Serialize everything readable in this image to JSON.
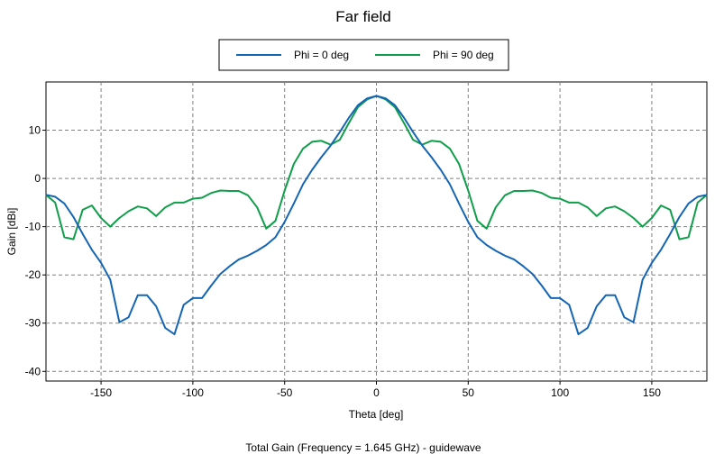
{
  "chart_data": {
    "type": "line",
    "title": "Far field",
    "xlabel": "Theta [deg]",
    "ylabel": "Gain [dBi]",
    "footer": "Total Gain (Frequency = 1.645 GHz) - guidewave",
    "xlim": [
      -180,
      180
    ],
    "ylim": [
      -42,
      20
    ],
    "xticks": [
      -150,
      -100,
      -50,
      0,
      50,
      100,
      150
    ],
    "yticks": [
      -40,
      -30,
      -20,
      -10,
      0,
      10
    ],
    "grid": true,
    "legend_position": "top-center",
    "series": [
      {
        "name": "Phi = 0 deg",
        "color": "#1565b5",
        "points": [
          [
            -180,
            -3.4
          ],
          [
            -175,
            -3.8
          ],
          [
            -170,
            -5.2
          ],
          [
            -165,
            -8.0
          ],
          [
            -160,
            -11.5
          ],
          [
            -155,
            -14.8
          ],
          [
            -150,
            -17.5
          ],
          [
            -145,
            -21.0
          ],
          [
            -140,
            -29.8
          ],
          [
            -135,
            -28.8
          ],
          [
            -130,
            -24.2
          ],
          [
            -125,
            -24.2
          ],
          [
            -120,
            -26.5
          ],
          [
            -115,
            -31.0
          ],
          [
            -110,
            -32.3
          ],
          [
            -105,
            -26.2
          ],
          [
            -100,
            -24.8
          ],
          [
            -95,
            -24.8
          ],
          [
            -90,
            -22.2
          ],
          [
            -85,
            -19.8
          ],
          [
            -80,
            -18.2
          ],
          [
            -75,
            -16.8
          ],
          [
            -70,
            -16.0
          ],
          [
            -65,
            -15.0
          ],
          [
            -60,
            -13.8
          ],
          [
            -55,
            -12.2
          ],
          [
            -50,
            -9.0
          ],
          [
            -45,
            -5.2
          ],
          [
            -40,
            -1.2
          ],
          [
            -35,
            1.8
          ],
          [
            -30,
            4.4
          ],
          [
            -25,
            6.8
          ],
          [
            -20,
            9.6
          ],
          [
            -15,
            12.6
          ],
          [
            -10,
            15.2
          ],
          [
            -5,
            16.6
          ],
          [
            0,
            17.1
          ],
          [
            5,
            16.6
          ],
          [
            10,
            15.2
          ],
          [
            15,
            12.6
          ],
          [
            20,
            9.6
          ],
          [
            25,
            6.8
          ],
          [
            30,
            4.4
          ],
          [
            35,
            1.8
          ],
          [
            40,
            -1.2
          ],
          [
            45,
            -5.2
          ],
          [
            50,
            -9.0
          ],
          [
            55,
            -12.2
          ],
          [
            60,
            -13.8
          ],
          [
            65,
            -15.0
          ],
          [
            70,
            -16.0
          ],
          [
            75,
            -16.8
          ],
          [
            80,
            -18.2
          ],
          [
            85,
            -19.8
          ],
          [
            90,
            -22.2
          ],
          [
            95,
            -24.8
          ],
          [
            100,
            -24.8
          ],
          [
            105,
            -26.2
          ],
          [
            110,
            -32.3
          ],
          [
            115,
            -31.0
          ],
          [
            120,
            -26.5
          ],
          [
            125,
            -24.2
          ],
          [
            130,
            -24.2
          ],
          [
            135,
            -28.8
          ],
          [
            140,
            -29.8
          ],
          [
            145,
            -21.0
          ],
          [
            150,
            -17.5
          ],
          [
            155,
            -14.8
          ],
          [
            160,
            -11.5
          ],
          [
            165,
            -8.0
          ],
          [
            170,
            -5.2
          ],
          [
            175,
            -3.8
          ],
          [
            180,
            -3.4
          ]
        ]
      },
      {
        "name": "Phi = 90 deg",
        "color": "#0f9e4a",
        "points": [
          [
            -180,
            -3.4
          ],
          [
            -175,
            -5.0
          ],
          [
            -170,
            -12.2
          ],
          [
            -165,
            -12.6
          ],
          [
            -160,
            -6.5
          ],
          [
            -155,
            -5.6
          ],
          [
            -150,
            -8.2
          ],
          [
            -145,
            -10.0
          ],
          [
            -140,
            -8.2
          ],
          [
            -135,
            -6.8
          ],
          [
            -130,
            -5.8
          ],
          [
            -125,
            -6.2
          ],
          [
            -120,
            -7.8
          ],
          [
            -115,
            -6.0
          ],
          [
            -110,
            -5.0
          ],
          [
            -105,
            -5.0
          ],
          [
            -100,
            -4.2
          ],
          [
            -95,
            -4.0
          ],
          [
            -90,
            -3.0
          ],
          [
            -85,
            -2.5
          ],
          [
            -80,
            -2.6
          ],
          [
            -75,
            -2.6
          ],
          [
            -70,
            -3.5
          ],
          [
            -65,
            -6.0
          ],
          [
            -60,
            -10.4
          ],
          [
            -55,
            -8.8
          ],
          [
            -50,
            -2.5
          ],
          [
            -45,
            3.0
          ],
          [
            -40,
            6.2
          ],
          [
            -35,
            7.6
          ],
          [
            -30,
            7.8
          ],
          [
            -25,
            7.0
          ],
          [
            -20,
            8.0
          ],
          [
            -15,
            11.5
          ],
          [
            -10,
            14.8
          ],
          [
            -5,
            16.4
          ],
          [
            0,
            17.1
          ],
          [
            5,
            16.4
          ],
          [
            10,
            14.8
          ],
          [
            15,
            11.5
          ],
          [
            20,
            8.0
          ],
          [
            25,
            7.0
          ],
          [
            30,
            7.8
          ],
          [
            35,
            7.6
          ],
          [
            40,
            6.2
          ],
          [
            45,
            3.0
          ],
          [
            50,
            -2.5
          ],
          [
            55,
            -8.8
          ],
          [
            60,
            -10.4
          ],
          [
            65,
            -6.0
          ],
          [
            70,
            -3.5
          ],
          [
            75,
            -2.6
          ],
          [
            80,
            -2.6
          ],
          [
            85,
            -2.5
          ],
          [
            90,
            -3.0
          ],
          [
            95,
            -4.0
          ],
          [
            100,
            -4.2
          ],
          [
            105,
            -5.0
          ],
          [
            110,
            -5.0
          ],
          [
            115,
            -6.0
          ],
          [
            120,
            -7.8
          ],
          [
            125,
            -6.2
          ],
          [
            130,
            -5.8
          ],
          [
            135,
            -6.8
          ],
          [
            140,
            -8.2
          ],
          [
            145,
            -10.0
          ],
          [
            150,
            -8.2
          ],
          [
            155,
            -5.6
          ],
          [
            160,
            -6.5
          ],
          [
            165,
            -12.6
          ],
          [
            170,
            -12.2
          ],
          [
            175,
            -5.0
          ],
          [
            180,
            -3.4
          ]
        ]
      }
    ]
  }
}
